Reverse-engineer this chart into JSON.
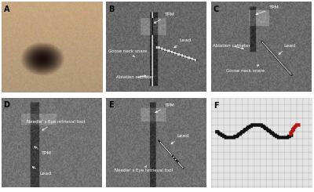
{
  "panels": [
    "A",
    "B",
    "C",
    "D",
    "E",
    "F"
  ],
  "layout": {
    "rows": 2,
    "cols": 3
  },
  "figsize": [
    4.0,
    2.45
  ],
  "dpi": 100,
  "panel_labels": [
    "A",
    "B",
    "C",
    "D",
    "E",
    "F"
  ],
  "label_fontsize": 7,
  "label_color": "black",
  "label_weight": "bold",
  "annotation_fontsize": 4.5,
  "annotation_color": "white",
  "white_bg": "#ffffff"
}
